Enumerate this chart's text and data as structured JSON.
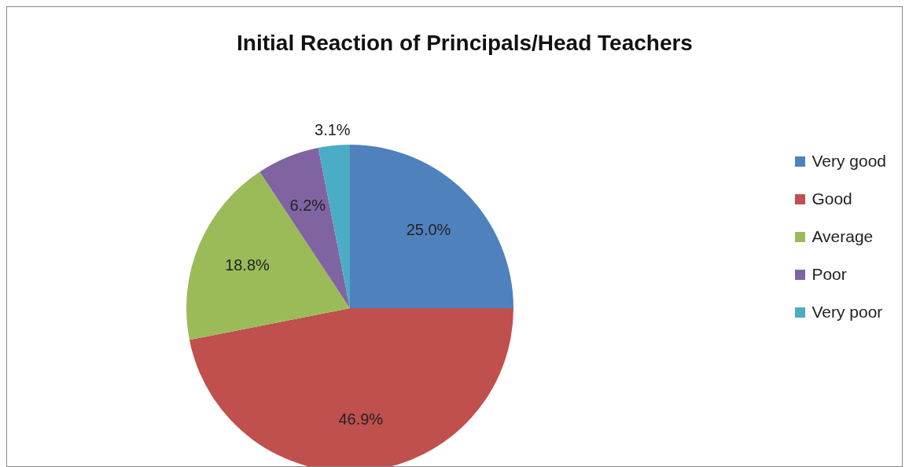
{
  "chart_data": {
    "type": "pie",
    "title": "Initial Reaction of Principals/Head Teachers",
    "categories": [
      "Very good",
      "Good",
      "Average",
      "Poor",
      "Very poor"
    ],
    "values": [
      25.0,
      46.9,
      18.8,
      6.2,
      3.1
    ],
    "value_labels": [
      "25.0%",
      "46.9%",
      "18.8%",
      "6.2%",
      "3.1%"
    ],
    "colors": [
      "#4f81bd",
      "#c0504d",
      "#9bbb59",
      "#8064a2",
      "#4bacc6"
    ],
    "legend": "right"
  }
}
